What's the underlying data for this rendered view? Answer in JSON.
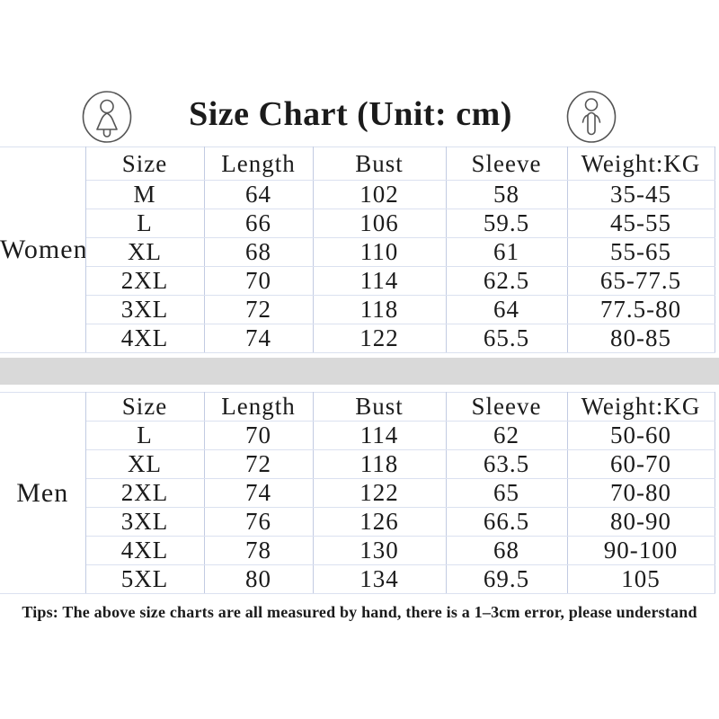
{
  "title": "Size Chart (Unit: cm)",
  "icons": {
    "left": "woman-icon",
    "right": "man-icon"
  },
  "colors": {
    "background": "#ffffff",
    "text": "#1b1b1b",
    "grid_vertical": "#c2cbe2",
    "grid_horizontal": "#dbe1f0",
    "divider_band": "#d9d9d9",
    "icon_stroke": "#555555"
  },
  "women": {
    "label": "Women",
    "columns": [
      "Size",
      "Length",
      "Bust",
      "Sleeve",
      "Weight:KG"
    ],
    "rows": [
      [
        "M",
        "64",
        "102",
        "58",
        "35-45"
      ],
      [
        "L",
        "66",
        "106",
        "59.5",
        "45-55"
      ],
      [
        "XL",
        "68",
        "110",
        "61",
        "55-65"
      ],
      [
        "2XL",
        "70",
        "114",
        "62.5",
        "65-77.5"
      ],
      [
        "3XL",
        "72",
        "118",
        "64",
        "77.5-80"
      ],
      [
        "4XL",
        "74",
        "122",
        "65.5",
        "80-85"
      ]
    ]
  },
  "men": {
    "label": "Men",
    "columns": [
      "Size",
      "Length",
      "Bust",
      "Sleeve",
      "Weight:KG"
    ],
    "rows": [
      [
        "L",
        "70",
        "114",
        "62",
        "50-60"
      ],
      [
        "XL",
        "72",
        "118",
        "63.5",
        "60-70"
      ],
      [
        "2XL",
        "74",
        "122",
        "65",
        "70-80"
      ],
      [
        "3XL",
        "76",
        "126",
        "66.5",
        "80-90"
      ],
      [
        "4XL",
        "78",
        "130",
        "68",
        "90-100"
      ],
      [
        "5XL",
        "80",
        "134",
        "69.5",
        "105"
      ]
    ]
  },
  "tips": "Tips: The above size charts are all measured by hand, there is a 1–3cm error, please understand"
}
